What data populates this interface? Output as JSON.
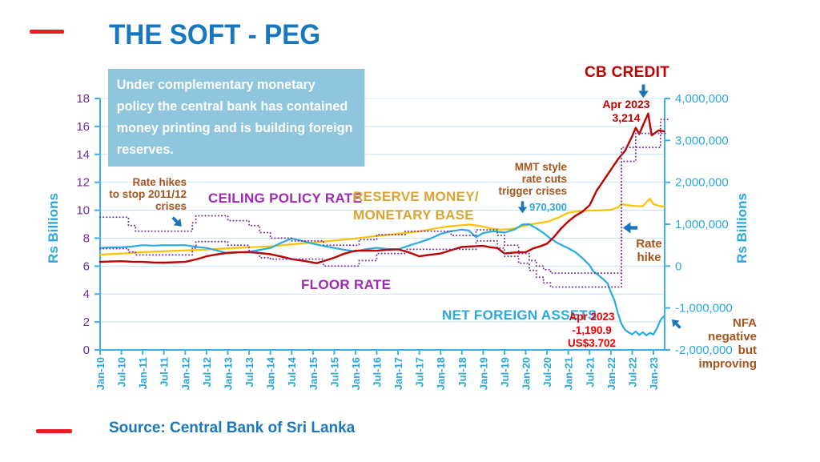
{
  "page": {
    "title": "THE SOFT - PEG",
    "source": "Source: Central Bank of Sri Lanka"
  },
  "callout": {
    "text": "Under complementary monetary policy the central bank has contained money printing and is building foreign reserves."
  },
  "colors": {
    "brand_blue": "#1878BE",
    "accent_red": "#EC1C24",
    "axis_blue": "#3FB0E4",
    "grid_blue": "#C9E4F4",
    "tick_purple": "#7030A0",
    "label_cyan": "#29A8E0",
    "purple_label": "#A128B5",
    "gold_label": "#D9A434",
    "dark_red": "#C00000",
    "bright_red": "#F20000",
    "brown": "#A6531C",
    "callout_bg": "#8FC6DD",
    "arrow_blue": "#1B75BC"
  },
  "labels": {
    "reserve1": "RESERVE MONEY/",
    "reserve2": "MONETARY BASE"
  },
  "annotations": {
    "rate_hikes": [
      "Rate hikes",
      "to stop 2011/12",
      "crises"
    ],
    "mmt": [
      "MMT style",
      "rate cuts",
      "trigger crises"
    ],
    "value_970300": "970,300",
    "cb_apr": [
      "Apr 2023",
      "3,214"
    ],
    "rate_hike": [
      "Rate",
      "hike"
    ],
    "nfa_apr": [
      "Apr 2023",
      "-1,190.9",
      "US$3.702"
    ],
    "nfa_note": [
      "NFA negative",
      "but improving"
    ]
  },
  "chart_data": {
    "type": "line",
    "x_unit": "months since Jan-2010",
    "x_tick_labels": [
      "Jan-10",
      "Jul-10",
      "Jan-11",
      "Jul-11",
      "Jan-12",
      "Jul-12",
      "Jan-13",
      "Jul-13",
      "Jan-14",
      "Jul-14",
      "Jan-15",
      "Jul-15",
      "Jan-16",
      "Jul-16",
      "Jan-17",
      "Jul-17",
      "Jan-18",
      "Jul-18",
      "Jan-19",
      "Jul-19",
      "Jan-20",
      "Jul-20",
      "Jan-21",
      "Jul-21",
      "Jan-22",
      "Jul-22",
      "Jan-23"
    ],
    "left_axis": {
      "label": "Rs Billions",
      "min": 0,
      "max": 18,
      "step": 2
    },
    "right_axis": {
      "label": "Rs Billions",
      "min": -2000000,
      "max": 4000000,
      "step": 1000000
    },
    "grid": true,
    "series": [
      {
        "name": "RESERVE MONEY/ MONETARY BASE",
        "axis": "right",
        "color": "#FFC000",
        "style": "solid",
        "width": 2.2,
        "points": [
          [
            0,
            273000
          ],
          [
            6,
            300000
          ],
          [
            12,
            333000
          ],
          [
            18,
            355000
          ],
          [
            24,
            375000
          ],
          [
            30,
            395000
          ],
          [
            36,
            425000
          ],
          [
            42,
            450000
          ],
          [
            48,
            470000
          ],
          [
            54,
            520000
          ],
          [
            60,
            560000
          ],
          [
            66,
            610000
          ],
          [
            72,
            660000
          ],
          [
            78,
            720000
          ],
          [
            84,
            770000
          ],
          [
            90,
            830000
          ],
          [
            96,
            920000
          ],
          [
            99,
            955000
          ],
          [
            102,
            975000
          ],
          [
            104,
            990000
          ],
          [
            107,
            960000
          ],
          [
            110,
            900000
          ],
          [
            113,
            870000
          ],
          [
            116,
            885000
          ],
          [
            118,
            925000
          ],
          [
            120,
            970300
          ],
          [
            123,
            1020000
          ],
          [
            126,
            1057000
          ],
          [
            129,
            1150000
          ],
          [
            132,
            1273000
          ],
          [
            135,
            1310000
          ],
          [
            138,
            1325000
          ],
          [
            141,
            1330000
          ],
          [
            144,
            1343000
          ],
          [
            146,
            1400000
          ],
          [
            147,
            1477000
          ],
          [
            149,
            1450000
          ],
          [
            151,
            1433000
          ],
          [
            153,
            1430000
          ],
          [
            155,
            1610000
          ],
          [
            156,
            1480000
          ],
          [
            158,
            1430000
          ],
          [
            159,
            1420000
          ]
        ]
      },
      {
        "name": "NET FOREIGN ASSETS",
        "axis": "right",
        "color": "#29ABE2",
        "style": "solid",
        "width": 2.2,
        "points": [
          [
            0,
            433000
          ],
          [
            3,
            447000
          ],
          [
            6,
            450000
          ],
          [
            9,
            467000
          ],
          [
            12,
            500000
          ],
          [
            15,
            487000
          ],
          [
            18,
            500000
          ],
          [
            21,
            497000
          ],
          [
            24,
            500000
          ],
          [
            27,
            460000
          ],
          [
            30,
            433000
          ],
          [
            33,
            373000
          ],
          [
            36,
            300000
          ],
          [
            39,
            327000
          ],
          [
            42,
            340000
          ],
          [
            45,
            387000
          ],
          [
            48,
            433000
          ],
          [
            51,
            553000
          ],
          [
            54,
            660000
          ],
          [
            57,
            600000
          ],
          [
            60,
            533000
          ],
          [
            63,
            480000
          ],
          [
            66,
            433000
          ],
          [
            69,
            387000
          ],
          [
            72,
            350000
          ],
          [
            75,
            403000
          ],
          [
            78,
            437000
          ],
          [
            81,
            407000
          ],
          [
            84,
            400000
          ],
          [
            87,
            487000
          ],
          [
            90,
            567000
          ],
          [
            93,
            653000
          ],
          [
            96,
            767000
          ],
          [
            99,
            833000
          ],
          [
            102,
            870000
          ],
          [
            104,
            847000
          ],
          [
            106,
            690000
          ],
          [
            108,
            790000
          ],
          [
            111,
            833000
          ],
          [
            114,
            800000
          ],
          [
            117,
            880000
          ],
          [
            119,
            990000
          ],
          [
            121,
            1000000
          ],
          [
            123,
            900000
          ],
          [
            125,
            790000
          ],
          [
            127,
            657000
          ],
          [
            129,
            550000
          ],
          [
            132,
            427000
          ],
          [
            134,
            330000
          ],
          [
            136,
            190000
          ],
          [
            138,
            20000
          ],
          [
            139,
            -120000
          ],
          [
            141,
            -250000
          ],
          [
            143,
            -400000
          ],
          [
            144,
            -620000
          ],
          [
            145,
            -816000
          ],
          [
            146,
            -1130000
          ],
          [
            147,
            -1380000
          ],
          [
            148,
            -1520000
          ],
          [
            149,
            -1585000
          ],
          [
            150,
            -1625000
          ],
          [
            151,
            -1560000
          ],
          [
            152,
            -1645000
          ],
          [
            153,
            -1575000
          ],
          [
            154,
            -1655000
          ],
          [
            155,
            -1595000
          ],
          [
            156,
            -1635000
          ],
          [
            157,
            -1480000
          ],
          [
            158,
            -1285000
          ],
          [
            159,
            -1190900
          ]
        ]
      },
      {
        "name": "CB CREDIT",
        "axis": "right",
        "color": "#C00000",
        "style": "solid",
        "width": 2.4,
        "points": [
          [
            0,
            100000
          ],
          [
            3,
            110000
          ],
          [
            6,
            117000
          ],
          [
            9,
            103000
          ],
          [
            12,
            100000
          ],
          [
            15,
            87000
          ],
          [
            18,
            83000
          ],
          [
            21,
            90000
          ],
          [
            24,
            100000
          ],
          [
            27,
            160000
          ],
          [
            30,
            233000
          ],
          [
            33,
            280000
          ],
          [
            36,
            317000
          ],
          [
            39,
            330000
          ],
          [
            42,
            333000
          ],
          [
            45,
            313000
          ],
          [
            48,
            283000
          ],
          [
            51,
            230000
          ],
          [
            54,
            167000
          ],
          [
            57,
            130000
          ],
          [
            61,
            70000
          ],
          [
            63,
            120000
          ],
          [
            66,
            200000
          ],
          [
            69,
            300000
          ],
          [
            72,
            367000
          ],
          [
            75,
            370000
          ],
          [
            78,
            367000
          ],
          [
            81,
            390000
          ],
          [
            84,
            400000
          ],
          [
            87,
            330000
          ],
          [
            90,
            233000
          ],
          [
            93,
            270000
          ],
          [
            96,
            300000
          ],
          [
            99,
            380000
          ],
          [
            102,
            457000
          ],
          [
            105,
            470000
          ],
          [
            108,
            483000
          ],
          [
            110,
            450000
          ],
          [
            112,
            430000
          ],
          [
            114,
            300000
          ],
          [
            117,
            325000
          ],
          [
            120,
            333000
          ],
          [
            122,
            420000
          ],
          [
            124,
            470000
          ],
          [
            126,
            533000
          ],
          [
            128,
            700000
          ],
          [
            130,
            900000
          ],
          [
            132,
            1067000
          ],
          [
            134,
            1200000
          ],
          [
            136,
            1300000
          ],
          [
            138,
            1450000
          ],
          [
            140,
            1800000
          ],
          [
            142,
            2050000
          ],
          [
            144,
            2300000
          ],
          [
            146,
            2550000
          ],
          [
            148,
            2750000
          ],
          [
            150,
            3100000
          ],
          [
            151,
            3300000
          ],
          [
            152,
            3150000
          ],
          [
            153,
            3350000
          ],
          [
            154.5,
            3640000
          ],
          [
            155.5,
            3120000
          ],
          [
            156.5,
            3180000
          ],
          [
            157.5,
            3240000
          ],
          [
            159,
            3214000
          ]
        ]
      },
      {
        "name": "CEILING POLICY RATE",
        "axis": "left",
        "color": "#7030A0",
        "style": "dotted",
        "width": 2,
        "step": true,
        "points": [
          [
            0,
            9.5
          ],
          [
            8,
            8.9
          ],
          [
            10,
            8.5
          ],
          [
            26,
            9.1
          ],
          [
            27,
            9.6
          ],
          [
            36,
            9.25
          ],
          [
            42,
            8.9
          ],
          [
            45,
            8.4
          ],
          [
            48,
            8.0
          ],
          [
            54,
            7.8
          ],
          [
            63,
            7.5
          ],
          [
            73,
            7.9
          ],
          [
            78,
            8.25
          ],
          [
            86,
            8.5
          ],
          [
            99,
            8.2
          ],
          [
            106,
            8.6
          ],
          [
            112,
            8.2
          ],
          [
            114,
            7.5
          ],
          [
            118,
            6.9
          ],
          [
            121,
            6.4
          ],
          [
            123,
            6.0
          ],
          [
            125,
            5.75
          ],
          [
            127,
            5.5
          ],
          [
            147,
            14.5
          ],
          [
            151,
            15.5
          ],
          [
            158,
            16.5
          ],
          [
            160,
            16.5
          ]
        ]
      },
      {
        "name": "FLOOR RATE",
        "axis": "left",
        "color": "#7030A0",
        "style": "dotted",
        "width": 2,
        "step": true,
        "points": [
          [
            0,
            7.25
          ],
          [
            8,
            7.0
          ],
          [
            10,
            6.8
          ],
          [
            26,
            7.3
          ],
          [
            27,
            7.75
          ],
          [
            36,
            7.5
          ],
          [
            42,
            7.0
          ],
          [
            45,
            6.6
          ],
          [
            48,
            6.5
          ],
          [
            63,
            6.0
          ],
          [
            73,
            6.4
          ],
          [
            78,
            6.9
          ],
          [
            86,
            7.2
          ],
          [
            106,
            7.8
          ],
          [
            112,
            7.3
          ],
          [
            114,
            6.7
          ],
          [
            118,
            6.2
          ],
          [
            121,
            5.7
          ],
          [
            123,
            5.2
          ],
          [
            125,
            4.8
          ],
          [
            127,
            4.5
          ],
          [
            147,
            13.5
          ],
          [
            151,
            14.5
          ],
          [
            158,
            15.5
          ],
          [
            160,
            15.5
          ]
        ]
      }
    ],
    "annotation_values": {
      "reserve_money_jan2020": 970300,
      "cb_credit_apr2023_rs_bn": 3214,
      "nfa_apr2023_rs_bn": -1190.9,
      "nfa_apr2023_usd_bn": 3.702
    }
  }
}
